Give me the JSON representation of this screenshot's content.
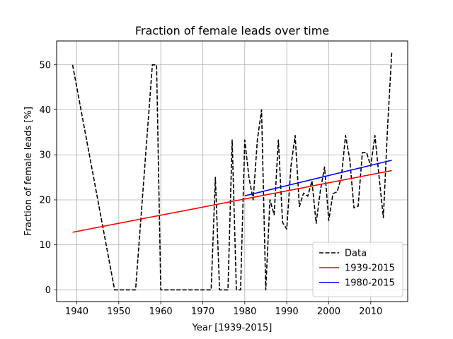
{
  "chart_data": {
    "type": "line",
    "title": "Fraction of female leads over time",
    "xlabel": "Year [1939-2015]",
    "ylabel": "Fraction of female leads [%]",
    "xlim": [
      1935.2,
      2018.8
    ],
    "ylim": [
      -2.6,
      55.3
    ],
    "xticks": [
      1940,
      1950,
      1960,
      1970,
      1980,
      1990,
      2000,
      2010
    ],
    "yticks": [
      0,
      10,
      20,
      30,
      40,
      50
    ],
    "grid": true,
    "legend_position": "lower-right",
    "series": [
      {
        "name": "Data",
        "color": "#000000",
        "style": "dashed",
        "x": [
          1939,
          1949,
          1950,
          1954,
          1958,
          1959,
          1960,
          1970,
          1972,
          1973,
          1974,
          1976,
          1977,
          1978,
          1979,
          1980,
          1981,
          1982,
          1983,
          1984,
          1985,
          1986,
          1987,
          1988,
          1989,
          1990,
          1991,
          1992,
          1993,
          1994,
          1995,
          1996,
          1997,
          1998,
          1999,
          2000,
          2001,
          2002,
          2003,
          2004,
          2005,
          2006,
          2007,
          2008,
          2009,
          2010,
          2011,
          2012,
          2013,
          2014,
          2015
        ],
        "y": [
          50,
          0,
          0,
          0,
          50,
          50,
          0,
          0,
          0,
          25,
          0,
          0,
          33.3,
          0,
          0,
          33.3,
          25,
          20,
          33.3,
          40,
          0,
          20,
          16.7,
          33.3,
          15,
          13.5,
          27.5,
          34.3,
          18.5,
          21.5,
          20.8,
          24.2,
          14.8,
          22,
          27.3,
          15.4,
          21.4,
          21.8,
          25,
          34.3,
          29,
          18.2,
          18.6,
          30.5,
          30.5,
          27.5,
          34.3,
          25,
          16,
          36,
          52.7
        ]
      },
      {
        "name": "1939-2015",
        "color": "#ff0000",
        "style": "solid",
        "x": [
          1939,
          2015
        ],
        "y": [
          12.8,
          26.5
        ]
      },
      {
        "name": "1980-2015",
        "color": "#0000ff",
        "style": "solid",
        "x": [
          1980,
          2015
        ],
        "y": [
          20.9,
          28.8
        ]
      }
    ]
  }
}
